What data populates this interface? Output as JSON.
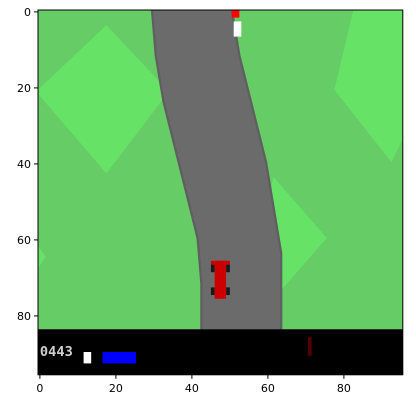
{
  "game": {
    "name_hint": "car-racing",
    "colors": {
      "grass_dark": "#66cc66",
      "grass_light": "#66e366",
      "road": "#6b6b6b",
      "road_edge": "#5f5f5f",
      "car_body": "#cc0000",
      "car_wheels": "#1a1a1a",
      "hud_background": "#000000",
      "hud_abs_light": "#ffffff",
      "hud_speed_bar": "#0000ff",
      "hud_gyro": "#550000",
      "marker_red": "#ff0000",
      "marker_white": "#ffffff",
      "axes_frame": "#000000"
    },
    "hud": {
      "score_text": "0443",
      "speed_level": 0.55
    },
    "axes": {
      "x_ticks": [
        "0",
        "20",
        "40",
        "60",
        "80"
      ],
      "y_ticks": [
        "0",
        "20",
        "40",
        "60",
        "80"
      ],
      "x_range": [
        0,
        96
      ],
      "y_range": [
        0,
        96
      ]
    }
  }
}
